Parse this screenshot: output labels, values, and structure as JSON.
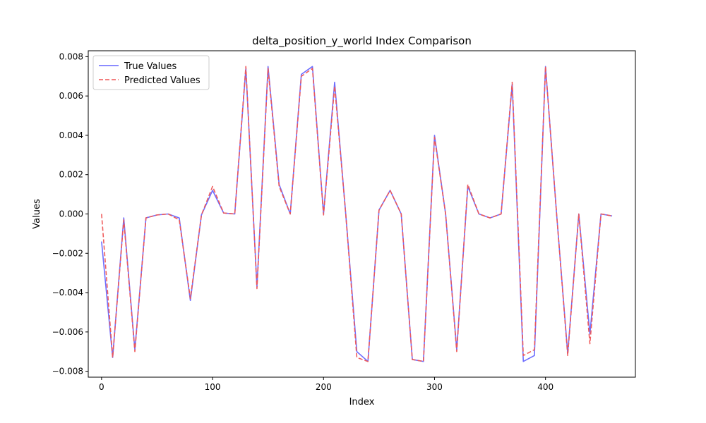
{
  "chart_data": {
    "type": "line",
    "title": "delta_position_y_world Index Comparison",
    "xlabel": "Index",
    "ylabel": "Values",
    "xlim": [
      -12,
      481
    ],
    "ylim": [
      -0.0083,
      0.0083
    ],
    "xticks": [
      0,
      100,
      200,
      300,
      400
    ],
    "xtick_labels": [
      "0",
      "100",
      "200",
      "300",
      "400"
    ],
    "yticks": [
      -0.008,
      -0.006,
      -0.004,
      -0.002,
      0.0,
      0.002,
      0.004,
      0.006,
      0.008
    ],
    "ytick_labels": [
      "−0.008",
      "−0.006",
      "−0.004",
      "−0.002",
      "0.000",
      "0.002",
      "0.004",
      "0.006",
      "0.008"
    ],
    "grid": false,
    "legend_position": "top-left",
    "x": [
      0,
      10,
      20,
      30,
      40,
      50,
      60,
      70,
      80,
      90,
      100,
      110,
      120,
      130,
      140,
      150,
      160,
      170,
      180,
      190,
      200,
      210,
      220,
      230,
      240,
      250,
      260,
      270,
      280,
      290,
      300,
      310,
      320,
      330,
      340,
      350,
      360,
      370,
      380,
      390,
      400,
      410,
      420,
      430,
      440,
      450,
      460
    ],
    "series": [
      {
        "name": "True Values",
        "color": "#6666ff",
        "style": "solid",
        "values": [
          -0.0014,
          -0.0073,
          -0.0002,
          -0.0069,
          -0.0002,
          -5e-05,
          0.0,
          -0.0002,
          -0.0044,
          -5e-05,
          0.0012,
          5e-05,
          0.0,
          0.0074,
          -0.0037,
          0.0075,
          0.0015,
          0.0,
          0.0071,
          0.0075,
          0.0,
          0.0067,
          0.0,
          -0.007,
          -0.0075,
          0.0002,
          0.0012,
          0.0,
          -0.0074,
          -0.0075,
          0.004,
          0.0,
          -0.0069,
          0.0014,
          0.0,
          -0.0002,
          0.0,
          0.0066,
          -0.0075,
          -0.0072,
          0.0075,
          0.0,
          -0.0071,
          0.0,
          -0.0061,
          0.0,
          -0.0001
        ]
      },
      {
        "name": "Predicted Values",
        "color": "#ef5555",
        "style": "dashed",
        "values": [
          0.0,
          -0.0073,
          -0.0003,
          -0.007,
          -0.0002,
          -5e-05,
          0.0,
          -0.0003,
          -0.0043,
          -5e-05,
          0.0014,
          5e-05,
          0.0,
          0.0075,
          -0.0038,
          0.0074,
          0.0014,
          0.0,
          0.007,
          0.0074,
          -5e-05,
          0.0065,
          0.0,
          -0.0073,
          -0.0075,
          0.0002,
          0.0012,
          0.0,
          -0.0074,
          -0.0075,
          0.0039,
          0.0,
          -0.007,
          0.0015,
          0.0,
          -0.0002,
          0.0,
          0.0067,
          -0.0072,
          -0.0069,
          0.0075,
          0.0,
          -0.0072,
          0.0,
          -0.0066,
          0.0,
          -0.0001
        ]
      }
    ]
  }
}
